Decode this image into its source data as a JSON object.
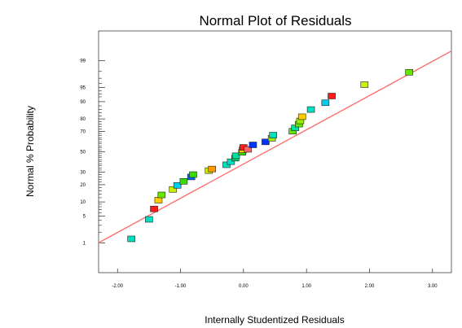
{
  "chart_data": {
    "type": "scatter",
    "title": "Normal Plot of Residuals",
    "xlabel": "Internally Studentized Residuals",
    "ylabel": "Normal % Probability",
    "xlim": [
      -2.3,
      3.3
    ],
    "ylim_probability": [
      0.1,
      99.9
    ],
    "y_scale": "normal-probability",
    "x_ticks": [
      -2.0,
      -1.0,
      0.0,
      1.0,
      2.0,
      3.0
    ],
    "x_tick_labels": [
      "-2.00",
      "-1.00",
      "0.00",
      "1.00",
      "2.00",
      "3.00"
    ],
    "y_ticks": [
      1,
      5,
      10,
      20,
      30,
      50,
      70,
      80,
      90,
      95,
      99
    ],
    "y_tick_labels": [
      "1",
      "5",
      "10",
      "20",
      "30",
      "50",
      "70",
      "80",
      "90",
      "95",
      "99"
    ],
    "reference_line": {
      "color": "#ff6666",
      "points": [
        [
          -2.3,
          1.0
        ],
        [
          3.3,
          99.5
        ]
      ]
    },
    "points": [
      {
        "x": -1.78,
        "y": 1.3,
        "color": "#00e0c0"
      },
      {
        "x": -1.5,
        "y": 4.2,
        "color": "#00e0c0"
      },
      {
        "x": -1.42,
        "y": 7.2,
        "color": "#ff1a1a"
      },
      {
        "x": -1.35,
        "y": 10.8,
        "color": "#ffcc00"
      },
      {
        "x": -1.3,
        "y": 13.5,
        "color": "#66e600"
      },
      {
        "x": -1.12,
        "y": 16.8,
        "color": "#ccee00"
      },
      {
        "x": -1.05,
        "y": 19.5,
        "color": "#00ccee"
      },
      {
        "x": -0.95,
        "y": 22.5,
        "color": "#33dd00"
      },
      {
        "x": -0.83,
        "y": 26.0,
        "color": "#0066ff"
      },
      {
        "x": -0.8,
        "y": 28.0,
        "color": "#33dd00"
      },
      {
        "x": -0.55,
        "y": 31.5,
        "color": "#ccee00"
      },
      {
        "x": -0.5,
        "y": 33.0,
        "color": "#ff9900"
      },
      {
        "x": -0.27,
        "y": 37.0,
        "color": "#00e0c0"
      },
      {
        "x": -0.2,
        "y": 40.0,
        "color": "#00e0c0"
      },
      {
        "x": -0.13,
        "y": 43.5,
        "color": "#00cc66"
      },
      {
        "x": -0.12,
        "y": 46.0,
        "color": "#00e0a0"
      },
      {
        "x": -0.02,
        "y": 49.5,
        "color": "#33dd00"
      },
      {
        "x": -0.01,
        "y": 52.0,
        "color": "#ffcc00"
      },
      {
        "x": 0.0,
        "y": 54.5,
        "color": "#ff1a1a"
      },
      {
        "x": 0.07,
        "y": 52.5,
        "color": "#ff6666"
      },
      {
        "x": 0.15,
        "y": 57.0,
        "color": "#0033ff"
      },
      {
        "x": 0.35,
        "y": 60.0,
        "color": "#0033ff"
      },
      {
        "x": 0.45,
        "y": 63.5,
        "color": "#99ee00"
      },
      {
        "x": 0.47,
        "y": 66.5,
        "color": "#00e0c0"
      },
      {
        "x": 0.78,
        "y": 70.0,
        "color": "#66e600"
      },
      {
        "x": 0.82,
        "y": 73.0,
        "color": "#00e0a0"
      },
      {
        "x": 0.88,
        "y": 76.0,
        "color": "#66e600"
      },
      {
        "x": 0.9,
        "y": 78.5,
        "color": "#99ee00"
      },
      {
        "x": 0.93,
        "y": 81.5,
        "color": "#ffcc00"
      },
      {
        "x": 1.07,
        "y": 86.0,
        "color": "#00e0c0"
      },
      {
        "x": 1.3,
        "y": 89.5,
        "color": "#00ccee"
      },
      {
        "x": 1.4,
        "y": 92.3,
        "color": "#ff1a1a"
      },
      {
        "x": 1.92,
        "y": 95.7,
        "color": "#ccee00"
      },
      {
        "x": 2.63,
        "y": 97.9,
        "color": "#66e600"
      }
    ]
  }
}
